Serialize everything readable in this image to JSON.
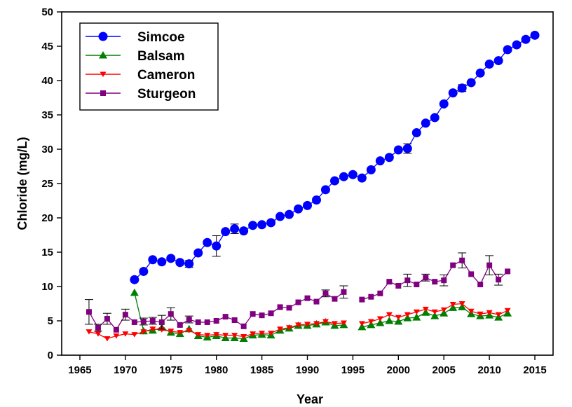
{
  "chart_data": {
    "type": "line",
    "xlabel": "Year",
    "ylabel": "Chloride (mg/L)",
    "xlim": [
      1963,
      2017
    ],
    "ylim": [
      0,
      50
    ],
    "xticks": [
      1965,
      1970,
      1975,
      1980,
      1985,
      1990,
      1995,
      2000,
      2005,
      2010,
      2015
    ],
    "yticks": [
      0,
      5,
      10,
      15,
      20,
      25,
      30,
      35,
      40,
      45,
      50
    ],
    "grid": false,
    "legend_position": "top-left",
    "series": [
      {
        "name": "Simcoe",
        "color": "#0000ff",
        "marker": "circle",
        "points": [
          [
            1971,
            11.0,
            0.3
          ],
          [
            1972,
            12.2,
            0.3
          ],
          [
            1973,
            13.9,
            0.3
          ],
          [
            1974,
            13.6,
            0.3
          ],
          [
            1975,
            14.1,
            0.3
          ],
          [
            1976,
            13.5,
            0.3
          ],
          [
            1977,
            13.3,
            0.5
          ],
          [
            1978,
            14.9,
            0.3
          ],
          [
            1979,
            16.4,
            0.4
          ],
          [
            1980,
            15.9,
            1.5
          ],
          [
            1981,
            18.0,
            0.3
          ],
          [
            1982,
            18.4,
            0.7
          ],
          [
            1983,
            18.1,
            0.3
          ],
          [
            1984,
            18.9,
            0.3
          ],
          [
            1985,
            19.0,
            0.3
          ],
          [
            1986,
            19.3,
            0.3
          ],
          [
            1987,
            20.2,
            0.3
          ],
          [
            1988,
            20.5,
            0.3
          ],
          [
            1989,
            21.3,
            0.3
          ],
          [
            1990,
            21.8,
            0.3
          ],
          [
            1991,
            22.6,
            0.3
          ],
          [
            1992,
            24.1,
            0.3
          ],
          [
            1993,
            25.4,
            0.3
          ],
          [
            1994,
            26.0,
            0.3
          ],
          [
            1995,
            26.3,
            0.3
          ],
          [
            1996,
            25.8,
            0.3
          ],
          [
            1997,
            27.0,
            0.3
          ],
          [
            1998,
            28.3,
            0.3
          ],
          [
            1999,
            28.8,
            0.3
          ],
          [
            2000,
            29.9,
            0.3
          ],
          [
            2001,
            30.1,
            0.7
          ],
          [
            2002,
            32.4,
            0.3
          ],
          [
            2003,
            33.8,
            0.3
          ],
          [
            2004,
            34.6,
            0.3
          ],
          [
            2005,
            36.6,
            0.3
          ],
          [
            2006,
            38.2,
            0.3
          ],
          [
            2007,
            38.9,
            0.5
          ],
          [
            2008,
            39.7,
            0.3
          ],
          [
            2009,
            41.1,
            0.3
          ],
          [
            2010,
            42.4,
            0.3
          ],
          [
            2011,
            42.9,
            0.3
          ],
          [
            2012,
            44.5,
            0.3
          ],
          [
            2013,
            45.2,
            0.3
          ],
          [
            2014,
            46.0,
            0.3
          ],
          [
            2015,
            46.6,
            0.3
          ]
        ]
      },
      {
        "name": "Balsam",
        "color": "#008000",
        "marker": "triangle-up",
        "points": [
          [
            1971,
            9.1,
            0.3
          ],
          [
            1972,
            3.5,
            0.3
          ],
          [
            1973,
            3.6,
            0.3
          ],
          [
            1974,
            4.0,
            0.3
          ],
          [
            1975,
            3.3,
            0.3
          ],
          [
            1976,
            3.1,
            0.3
          ],
          [
            1977,
            3.8,
            0.3
          ],
          [
            1978,
            2.8,
            0.3
          ],
          [
            1979,
            2.6,
            0.3
          ],
          [
            1980,
            2.8,
            0.3
          ],
          [
            1981,
            2.5,
            0.3
          ],
          [
            1982,
            2.5,
            0.3
          ],
          [
            1983,
            2.4,
            0.3
          ],
          [
            1984,
            2.9,
            0.3
          ],
          [
            1985,
            3.0,
            0.3
          ],
          [
            1986,
            2.9,
            0.3
          ],
          [
            1987,
            3.6,
            0.3
          ],
          [
            1988,
            3.9,
            0.3
          ],
          [
            1989,
            4.3,
            0.3
          ],
          [
            1990,
            4.3,
            0.3
          ],
          [
            1991,
            4.5,
            0.3
          ],
          [
            1992,
            4.8,
            0.3
          ],
          [
            1993,
            4.3,
            0.3
          ],
          [
            1994,
            4.4,
            0.3
          ],
          [
            1996,
            4.1,
            0.3
          ],
          [
            1997,
            4.4,
            0.3
          ],
          [
            1998,
            4.7,
            0.3
          ],
          [
            1999,
            5.0,
            0.3
          ],
          [
            2000,
            4.9,
            0.3
          ],
          [
            2001,
            5.4,
            0.3
          ],
          [
            2002,
            5.5,
            0.3
          ],
          [
            2003,
            6.2,
            0.3
          ],
          [
            2004,
            5.7,
            0.3
          ],
          [
            2005,
            6.1,
            0.3
          ],
          [
            2006,
            6.9,
            0.3
          ],
          [
            2007,
            7.0,
            0.3
          ],
          [
            2008,
            6.0,
            0.3
          ],
          [
            2009,
            5.7,
            0.3
          ],
          [
            2010,
            5.8,
            0.3
          ],
          [
            2011,
            5.5,
            0.3
          ],
          [
            2012,
            6.1,
            0.3
          ]
        ]
      },
      {
        "name": "Cameron",
        "color": "#ff0000",
        "marker": "triangle-down",
        "points": [
          [
            1966,
            3.4,
            0.4
          ],
          [
            1967,
            3.1,
            0.3
          ],
          [
            1968,
            2.4,
            0.3
          ],
          [
            1969,
            2.8,
            0.3
          ],
          [
            1970,
            3.1,
            0.3
          ],
          [
            1971,
            3.0,
            0.3
          ],
          [
            1972,
            3.4,
            0.3
          ],
          [
            1973,
            3.8,
            0.3
          ],
          [
            1974,
            3.7,
            0.3
          ],
          [
            1975,
            3.5,
            0.3
          ],
          [
            1976,
            3.3,
            0.3
          ],
          [
            1977,
            3.6,
            0.3
          ],
          [
            1978,
            3.0,
            0.3
          ],
          [
            1979,
            2.9,
            0.3
          ],
          [
            1980,
            3.0,
            0.3
          ],
          [
            1981,
            2.9,
            0.3
          ],
          [
            1982,
            2.9,
            0.3
          ],
          [
            1983,
            2.7,
            0.3
          ],
          [
            1984,
            3.1,
            0.3
          ],
          [
            1985,
            3.2,
            0.3
          ],
          [
            1986,
            3.2,
            0.3
          ],
          [
            1987,
            3.8,
            0.3
          ],
          [
            1988,
            4.0,
            0.3
          ],
          [
            1989,
            4.4,
            0.3
          ],
          [
            1990,
            4.5,
            0.3
          ],
          [
            1991,
            4.6,
            0.3
          ],
          [
            1992,
            4.9,
            0.3
          ],
          [
            1993,
            4.6,
            0.3
          ],
          [
            1994,
            4.7,
            0.3
          ],
          [
            1996,
            4.6,
            0.3
          ],
          [
            1997,
            4.9,
            0.3
          ],
          [
            1998,
            5.3,
            0.3
          ],
          [
            1999,
            5.9,
            0.3
          ],
          [
            2000,
            5.5,
            0.3
          ],
          [
            2001,
            5.9,
            0.3
          ],
          [
            2002,
            6.3,
            0.3
          ],
          [
            2003,
            6.7,
            0.3
          ],
          [
            2004,
            6.3,
            0.3
          ],
          [
            2005,
            6.6,
            0.3
          ],
          [
            2006,
            7.4,
            0.3
          ],
          [
            2007,
            7.5,
            0.3
          ],
          [
            2008,
            6.4,
            0.3
          ],
          [
            2009,
            6.0,
            0.3
          ],
          [
            2010,
            6.2,
            0.3
          ],
          [
            2011,
            5.9,
            0.3
          ],
          [
            2012,
            6.5,
            0.3
          ]
        ]
      },
      {
        "name": "Sturgeon",
        "color": "#800080",
        "marker": "square",
        "points": [
          [
            1966,
            6.3,
            1.8
          ],
          [
            1967,
            4.0,
            0.5
          ],
          [
            1968,
            5.3,
            0.8
          ],
          [
            1969,
            3.7,
            0.4
          ],
          [
            1970,
            5.9,
            0.8
          ],
          [
            1971,
            4.8,
            0.3
          ],
          [
            1972,
            4.9,
            0.5
          ],
          [
            1973,
            5.0,
            0.5
          ],
          [
            1974,
            4.8,
            1.0
          ],
          [
            1975,
            6.0,
            0.9
          ],
          [
            1976,
            4.4,
            0.4
          ],
          [
            1977,
            5.2,
            0.5
          ],
          [
            1978,
            4.8,
            0.3
          ],
          [
            1979,
            4.8,
            0.3
          ],
          [
            1980,
            5.0,
            0.3
          ],
          [
            1981,
            5.6,
            0.3
          ],
          [
            1982,
            5.1,
            0.3
          ],
          [
            1983,
            4.2,
            0.3
          ],
          [
            1984,
            6.0,
            0.3
          ],
          [
            1985,
            5.8,
            0.3
          ],
          [
            1986,
            6.1,
            0.3
          ],
          [
            1987,
            7.0,
            0.3
          ],
          [
            1988,
            6.9,
            0.3
          ],
          [
            1989,
            7.7,
            0.3
          ],
          [
            1990,
            8.3,
            0.3
          ],
          [
            1991,
            7.8,
            0.3
          ],
          [
            1992,
            9.0,
            0.5
          ],
          [
            1993,
            8.2,
            0.3
          ],
          [
            1994,
            9.2,
            0.9
          ],
          [
            1996,
            8.1,
            0.3
          ],
          [
            1997,
            8.5,
            0.3
          ],
          [
            1998,
            9.0,
            0.3
          ],
          [
            1999,
            10.7,
            0.4
          ],
          [
            2000,
            10.1,
            0.4
          ],
          [
            2001,
            10.9,
            0.9
          ],
          [
            2002,
            10.3,
            0.3
          ],
          [
            2003,
            11.3,
            0.5
          ],
          [
            2004,
            10.7,
            0.3
          ],
          [
            2005,
            10.9,
            0.8
          ],
          [
            2006,
            13.1,
            0.4
          ],
          [
            2007,
            13.8,
            1.1
          ],
          [
            2008,
            11.8,
            0.3
          ],
          [
            2009,
            10.3,
            0.3
          ],
          [
            2010,
            13.1,
            1.4
          ],
          [
            2011,
            11.0,
            0.8
          ],
          [
            2012,
            12.2,
            0.4
          ]
        ]
      }
    ]
  }
}
